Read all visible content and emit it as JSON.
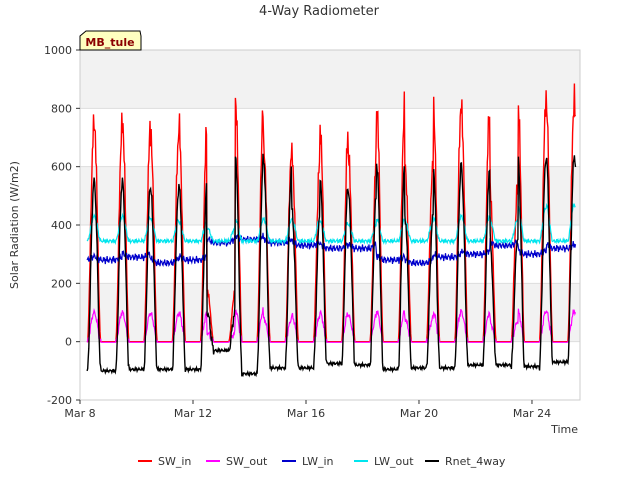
{
  "chart_data": {
    "type": "line",
    "title": "4-Way Radiometer",
    "site_label": "MB_tule",
    "xlabel": "Time",
    "ylabel": "Solar Radiation (W/m2)",
    "x_start_label": "Mar 8",
    "xlim_days": [
      8.0,
      25.7
    ],
    "ylim": [
      -200,
      1000
    ],
    "yticks": [
      "-200",
      "0",
      "200",
      "400",
      "600",
      "800",
      "1000"
    ],
    "xticks": [
      {
        "day": 8,
        "label": "Mar 8"
      },
      {
        "day": 12,
        "label": "Mar 12"
      },
      {
        "day": 16,
        "label": "Mar 16"
      },
      {
        "day": 20,
        "label": "Mar 20"
      },
      {
        "day": 24,
        "label": "Mar 24"
      }
    ],
    "grid": true,
    "legend_position": "bottom",
    "series": [
      {
        "name": "SW_in",
        "color": "#ff0000"
      },
      {
        "name": "SW_out",
        "color": "#ff00ff"
      },
      {
        "name": "LW_in",
        "color": "#0000cc"
      },
      {
        "name": "LW_out",
        "color": "#00e5ee"
      },
      {
        "name": "Rnet_4way",
        "color": "#000000"
      }
    ],
    "daily_peaks": {
      "days": [
        "Mar 9",
        "Mar 10",
        "Mar 11",
        "Mar 12",
        "Mar 13",
        "Mar 14",
        "Mar 15",
        "Mar 16",
        "Mar 17",
        "Mar 18",
        "Mar 19",
        "Mar 20",
        "Mar 21",
        "Mar 22",
        "Mar 23",
        "Mar 24",
        "Mar 25"
      ],
      "SW_in": [
        810,
        810,
        760,
        805,
        190,
        890,
        720,
        690,
        780,
        690,
        880,
        660,
        880,
        850,
        580,
        890,
        890
      ],
      "SW_out": [
        100,
        100,
        95,
        100,
        30,
        110,
        80,
        90,
        100,
        90,
        105,
        80,
        105,
        100,
        70,
        105,
        105
      ],
      "LW_in_day": [
        280,
        290,
        270,
        280,
        340,
        350,
        340,
        330,
        320,
        320,
        280,
        270,
        290,
        300,
        330,
        300,
        320
      ],
      "LW_out_day": [
        430,
        430,
        420,
        410,
        390,
        420,
        420,
        420,
        410,
        400,
        420,
        410,
        430,
        430,
        420,
        460,
        470
      ],
      "Rnet_4way": [
        550,
        550,
        520,
        545,
        100,
        640,
        610,
        450,
        550,
        510,
        610,
        430,
        610,
        590,
        360,
        630,
        640
      ],
      "Rnet_night": [
        -100,
        -95,
        -95,
        -95,
        -30,
        -110,
        -90,
        -90,
        -75,
        -80,
        -95,
        -90,
        -90,
        -80,
        -80,
        -85,
        -70
      ]
    }
  }
}
